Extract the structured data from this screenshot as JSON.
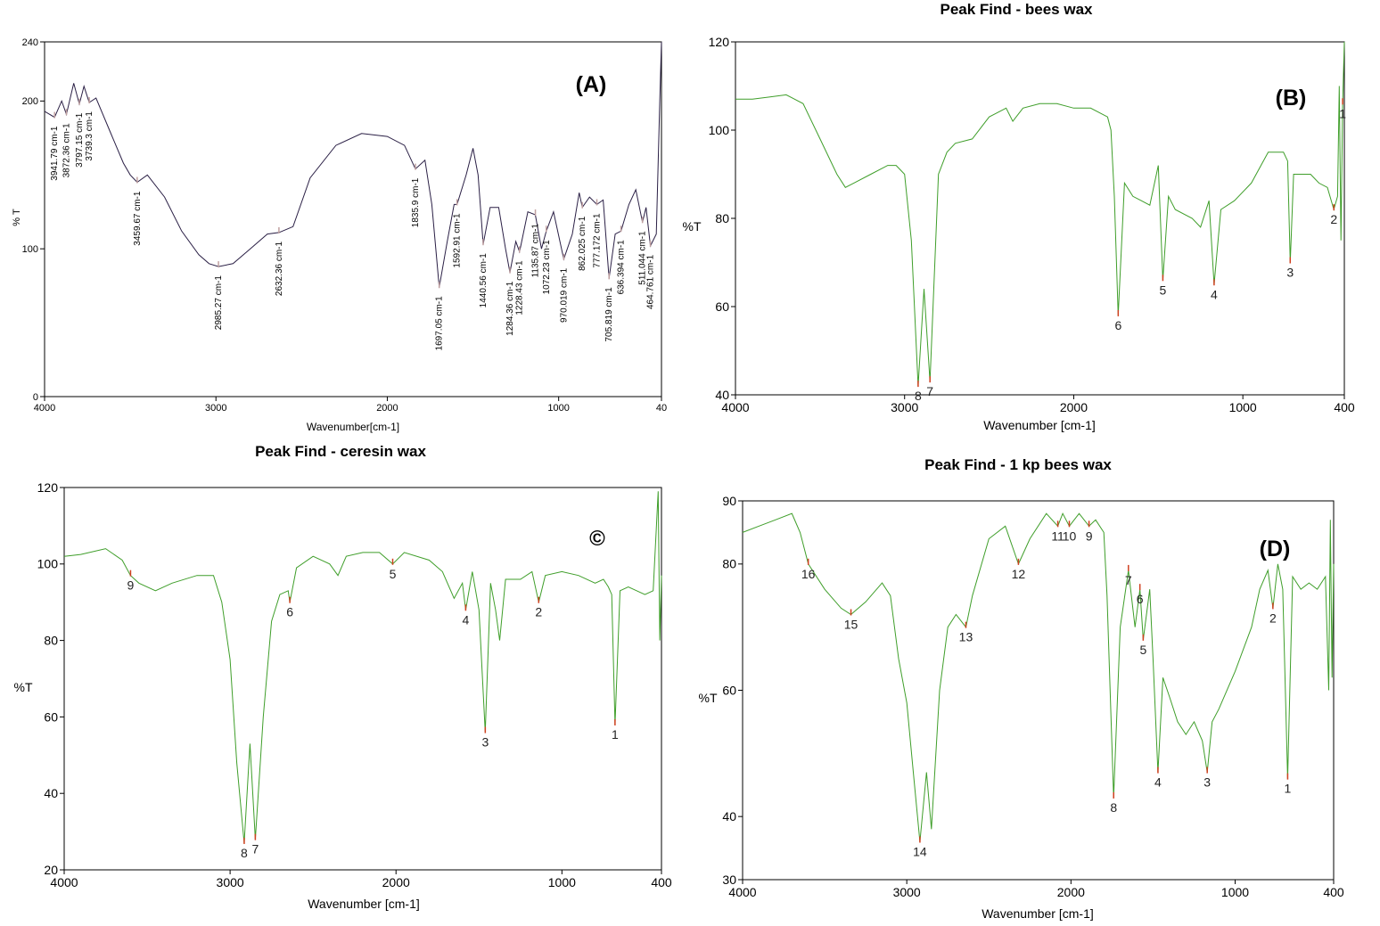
{
  "chart_data": [
    {
      "panel": "(A)",
      "type": "line",
      "title": "",
      "xlabel": "Wavenumber[cm-1]",
      "ylabel": "% T",
      "xlim": [
        4000,
        400
      ],
      "ylim": [
        0,
        240
      ],
      "xticks": [
        "4000",
        "3000",
        "2000",
        "1000",
        "40"
      ],
      "yticks": [
        "0",
        "100",
        "200",
        "240"
      ],
      "line_color": "#2a1f45",
      "series": [
        {
          "name": "spectrum",
          "x": [
            4000,
            3941.79,
            3900,
            3872.36,
            3830,
            3797.15,
            3770,
            3739.3,
            3700,
            3620,
            3540,
            3500,
            3459.67,
            3400,
            3300,
            3200,
            3100,
            3040,
            2985.27,
            2900,
            2800,
            2700,
            2632.36,
            2550,
            2450,
            2300,
            2150,
            2000,
            1900,
            1835.9,
            1780,
            1740,
            1697.05,
            1650,
            1610,
            1592.91,
            1540,
            1500,
            1470,
            1440.56,
            1400,
            1350,
            1310,
            1284.36,
            1250,
            1228.43,
            1180,
            1135.87,
            1100,
            1072.23,
            1030,
            970.019,
            920,
            880,
            862.025,
            820,
            777.172,
            740,
            705.819,
            670,
            636.394,
            590,
            550,
            511.044,
            490,
            464.761,
            430,
            410,
            400
          ],
          "y": [
            193,
            189,
            200,
            191,
            212,
            198,
            210,
            199,
            202,
            180,
            158,
            150,
            145,
            150,
            135,
            112,
            96,
            90,
            88,
            90,
            100,
            110,
            111,
            115,
            148,
            170,
            178,
            176,
            170,
            154,
            160,
            130,
            74,
            105,
            130,
            130,
            150,
            168,
            150,
            103,
            128,
            128,
            100,
            84,
            105,
            98,
            125,
            123,
            100,
            112,
            125,
            93,
            110,
            138,
            128,
            135,
            130,
            133,
            80,
            110,
            112,
            130,
            140,
            118,
            128,
            102,
            110,
            200,
            240
          ]
        }
      ],
      "peak_labels": [
        "3941.79 cm-1",
        "3872.36 cm-1",
        "3797.15 cm-1",
        "3739.3 cm-1",
        "3459.67 cm-1",
        "2985.27 cm-1",
        "2632.36 cm-1",
        "1835.9 cm-1",
        "1697.05 cm-1",
        "1592.91 cm-1",
        "1440.56 cm-1",
        "1284.36 cm-1",
        "1228.43 cm-1",
        "1135.87 cm-1",
        "1072.23 cm-1",
        "970.019 cm-1",
        "862.025 cm-1",
        "777.172 cm-1",
        "705.819 cm-1",
        "636.394 cm-1",
        "511.044 cm-1",
        "464.761 cm-1"
      ],
      "peak_x": [
        3941.79,
        3872.36,
        3797.15,
        3739.3,
        3459.67,
        2985.27,
        2632.36,
        1835.9,
        1697.05,
        1592.91,
        1440.56,
        1284.36,
        1228.43,
        1135.87,
        1072.23,
        970.019,
        862.025,
        777.172,
        705.819,
        636.394,
        511.044,
        464.761
      ]
    },
    {
      "panel": "(B)",
      "type": "line",
      "title": "Peak Find - bees wax",
      "xlabel": "Wavenumber [cm-1]",
      "ylabel": "%T",
      "xlim": [
        4000,
        400
      ],
      "ylim": [
        40,
        120
      ],
      "xticks": [
        "4000",
        "3000",
        "2000",
        "1000",
        "400"
      ],
      "yticks": [
        "40",
        "60",
        "80",
        "100",
        "120"
      ],
      "line_color": "#3f9e2a",
      "series": [
        {
          "name": "spectrum",
          "x": [
            4000,
            3900,
            3800,
            3700,
            3600,
            3500,
            3400,
            3350,
            3300,
            3200,
            3100,
            3050,
            3000,
            2960,
            2920,
            2885,
            2850,
            2800,
            2750,
            2700,
            2600,
            2500,
            2400,
            2360,
            2300,
            2200,
            2100,
            2000,
            1900,
            1800,
            1780,
            1760,
            1737,
            1700,
            1650,
            1600,
            1550,
            1500,
            1473,
            1440,
            1400,
            1300,
            1250,
            1200,
            1170,
            1130,
            1050,
            950,
            850,
            800,
            760,
            735,
            720,
            700,
            650,
            600,
            550,
            500,
            462,
            440,
            430,
            420,
            410,
            400
          ],
          "y": [
            107,
            107,
            107.5,
            108,
            106,
            98,
            90,
            87,
            88,
            90,
            92,
            92,
            90,
            75,
            42,
            64,
            43,
            90,
            95,
            97,
            98,
            103,
            105,
            102,
            105,
            106,
            106,
            105,
            105,
            103,
            100,
            85,
            58,
            88,
            85,
            84,
            83,
            92,
            66,
            85,
            82,
            80,
            78,
            84,
            65,
            82,
            84,
            88,
            95,
            95,
            95,
            93,
            70,
            90,
            90,
            90,
            88,
            87,
            82,
            85,
            110,
            75,
            106,
            120
          ]
        }
      ],
      "peak_labels": [
        "1",
        "2",
        "3",
        "4",
        "5",
        "6",
        "7",
        "8"
      ],
      "peak_x": [
        410,
        462,
        720,
        1170,
        1473,
        1737,
        2850,
        2920
      ]
    },
    {
      "panel": "©",
      "type": "line",
      "title": "Peak Find - ceresin wax",
      "xlabel": "Wavenumber [cm-1]",
      "ylabel": "%T",
      "xlim": [
        4000,
        400
      ],
      "ylim": [
        20,
        120
      ],
      "xticks": [
        "4000",
        "3000",
        "2000",
        "1000",
        "400"
      ],
      "yticks": [
        "20",
        "40",
        "60",
        "80",
        "100",
        "120"
      ],
      "line_color": "#3f9e2a",
      "series": [
        {
          "name": "spectrum",
          "x": [
            4000,
            3900,
            3750,
            3650,
            3600,
            3550,
            3450,
            3350,
            3200,
            3100,
            3050,
            3000,
            2960,
            2915,
            2880,
            2848,
            2800,
            2750,
            2700,
            2650,
            2640,
            2600,
            2500,
            2400,
            2350,
            2300,
            2200,
            2100,
            2020,
            1950,
            1800,
            1720,
            1650,
            1600,
            1580,
            1540,
            1500,
            1462,
            1430,
            1400,
            1375,
            1340,
            1250,
            1180,
            1140,
            1100,
            1000,
            900,
            800,
            750,
            720,
            700,
            680,
            650,
            600,
            550,
            500,
            450,
            420,
            410,
            400
          ],
          "y": [
            102,
            102.5,
            104,
            101,
            97,
            95,
            93,
            95,
            97,
            97,
            90,
            75,
            48,
            27,
            53,
            28,
            60,
            85,
            92,
            93,
            90,
            99,
            102,
            100,
            97,
            102,
            103,
            103,
            100,
            103,
            101,
            98,
            91,
            95,
            88,
            98,
            88,
            56,
            95,
            88,
            80,
            96,
            96,
            98,
            90,
            97,
            98,
            97,
            95,
            96,
            94,
            92,
            58,
            93,
            94,
            93,
            92,
            93,
            119,
            80,
            97
          ]
        }
      ],
      "peak_labels": [
        "1",
        "2",
        "3",
        "4",
        "5",
        "6",
        "7",
        "8",
        "9"
      ],
      "peak_x": [
        680,
        1140,
        1462,
        1580,
        2020,
        2640,
        2848,
        2915,
        3600
      ]
    },
    {
      "panel": "(D)",
      "type": "line",
      "title": "Peak Find - 1 kp bees wax",
      "xlabel": "Wavenumber [cm-1]",
      "ylabel": "%T",
      "xlim": [
        4000,
        400
      ],
      "ylim": [
        30,
        90
      ],
      "xticks": [
        "4000",
        "3000",
        "2000",
        "1000",
        "400"
      ],
      "yticks": [
        "30",
        "40",
        "60",
        "80",
        "90"
      ],
      "line_color": "#3f9e2a",
      "series": [
        {
          "name": "spectrum",
          "x": [
            4000,
            3900,
            3800,
            3700,
            3650,
            3600,
            3500,
            3400,
            3340,
            3250,
            3150,
            3100,
            3050,
            3000,
            2960,
            2920,
            2880,
            2850,
            2800,
            2750,
            2700,
            2640,
            2600,
            2500,
            2400,
            2320,
            2250,
            2150,
            2080,
            2050,
            2010,
            1950,
            1890,
            1850,
            1800,
            1780,
            1740,
            1700,
            1650,
            1610,
            1580,
            1560,
            1520,
            1500,
            1470,
            1440,
            1400,
            1350,
            1300,
            1250,
            1200,
            1170,
            1140,
            1100,
            1000,
            900,
            850,
            800,
            770,
            740,
            710,
            680,
            650,
            600,
            550,
            500,
            450,
            430,
            420,
            410,
            400
          ],
          "y": [
            85,
            86,
            87,
            88,
            85,
            80,
            76,
            73,
            72,
            74,
            77,
            75,
            65,
            58,
            47,
            36,
            47,
            38,
            60,
            70,
            72,
            70,
            75,
            84,
            86,
            80,
            84,
            88,
            86,
            88,
            86,
            88,
            86,
            87,
            85,
            75,
            43,
            70,
            79,
            70,
            76,
            68,
            76,
            65,
            47,
            62,
            59,
            55,
            53,
            55,
            52,
            47,
            55,
            57,
            63,
            70,
            76,
            79,
            73,
            80,
            76,
            46,
            78,
            76,
            77,
            76,
            78,
            60,
            87,
            62,
            80
          ]
        }
      ],
      "peak_labels": [
        "1",
        "2",
        "3",
        "4",
        "5",
        "6",
        "7",
        "8",
        "9",
        "10",
        "11",
        "12",
        "13",
        "14",
        "15",
        "16"
      ],
      "peak_x": [
        680,
        770,
        1170,
        1470,
        1560,
        1580,
        1650,
        1740,
        1890,
        2010,
        2080,
        2320,
        2640,
        2920,
        3340,
        3600
      ]
    }
  ]
}
